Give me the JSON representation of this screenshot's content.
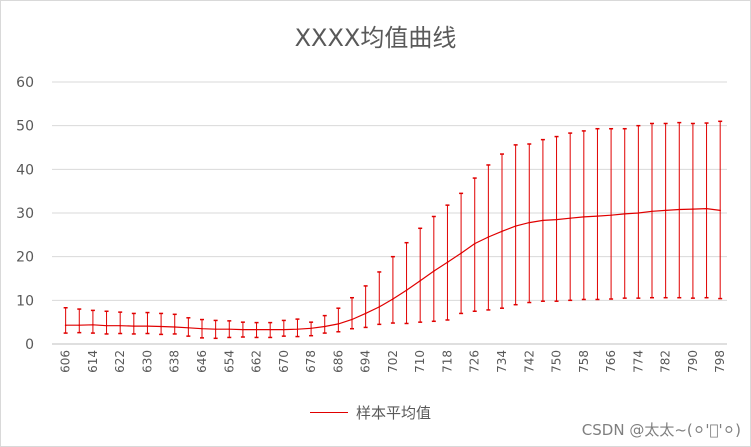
{
  "chart_data": {
    "type": "line",
    "title": "XXXX均值曲线",
    "xlabel": "",
    "ylabel": "",
    "ylim": [
      0,
      60
    ],
    "yticks": [
      0,
      10,
      20,
      30,
      40,
      50,
      60
    ],
    "grid": true,
    "legend_position": "bottom",
    "x_labels": [
      "606",
      "614",
      "622",
      "630",
      "638",
      "646",
      "654",
      "662",
      "670",
      "678",
      "686",
      "694",
      "702",
      "710",
      "718",
      "726",
      "734",
      "742",
      "750",
      "758",
      "766",
      "774",
      "782",
      "790",
      "798"
    ],
    "series": [
      {
        "name": "样本平均值",
        "color": "#e00000",
        "x": [
          606,
          610,
          614,
          618,
          622,
          626,
          630,
          634,
          638,
          642,
          646,
          650,
          654,
          658,
          662,
          666,
          670,
          674,
          678,
          682,
          686,
          690,
          694,
          698,
          702,
          706,
          710,
          714,
          718,
          722,
          726,
          730,
          734,
          738,
          742,
          746,
          750,
          754,
          758,
          762,
          766,
          770,
          774,
          778,
          782,
          786,
          790,
          794,
          798
        ],
        "values": [
          4.3,
          4.3,
          4.4,
          4.2,
          4.2,
          4.1,
          4.1,
          4.0,
          3.9,
          3.7,
          3.5,
          3.4,
          3.4,
          3.3,
          3.3,
          3.3,
          3.3,
          3.4,
          3.6,
          4.0,
          4.6,
          5.6,
          7.0,
          8.5,
          10.3,
          12.3,
          14.5,
          16.7,
          18.7,
          20.8,
          23.0,
          24.5,
          25.8,
          27.0,
          27.8,
          28.3,
          28.5,
          28.8,
          29.1,
          29.3,
          29.5,
          29.8,
          30.0,
          30.4,
          30.6,
          30.8,
          30.9,
          31.0,
          30.6
        ],
        "error_lower": [
          2.5,
          2.6,
          2.5,
          2.3,
          2.4,
          2.3,
          2.4,
          2.2,
          2.3,
          1.8,
          1.4,
          1.3,
          1.5,
          1.6,
          1.5,
          1.5,
          1.8,
          1.7,
          1.9,
          2.5,
          2.8,
          3.5,
          3.8,
          4.5,
          4.8,
          4.7,
          5.0,
          5.2,
          5.5,
          7.0,
          7.5,
          7.8,
          8.2,
          9.0,
          9.5,
          9.8,
          9.8,
          10.0,
          10.2,
          10.2,
          10.3,
          10.5,
          10.5,
          10.6,
          10.6,
          10.6,
          10.5,
          10.6,
          10.4
        ],
        "error_upper": [
          8.3,
          8.0,
          7.7,
          7.5,
          7.3,
          7.0,
          7.2,
          7.0,
          6.8,
          6.0,
          5.6,
          5.4,
          5.3,
          5.0,
          4.9,
          4.9,
          5.4,
          5.7,
          5.0,
          6.5,
          8.2,
          10.6,
          13.3,
          16.5,
          20.0,
          23.2,
          26.5,
          29.2,
          31.8,
          34.5,
          38.0,
          41.0,
          43.5,
          45.6,
          45.8,
          46.8,
          47.5,
          48.3,
          48.8,
          49.3,
          49.3,
          49.3,
          50.0,
          50.5,
          50.5,
          50.7,
          50.5,
          50.6,
          51.0
        ]
      }
    ]
  },
  "legend": {
    "label": "样本平均值",
    "color": "#e00000"
  },
  "watermark": "CSDN @太太~(⚪'⃘'⚪)"
}
